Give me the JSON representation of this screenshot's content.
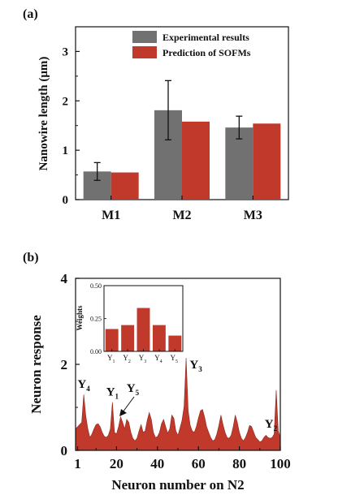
{
  "chart_data": [
    {
      "type": "bar",
      "panel_label": "(a)",
      "categories": [
        "M1",
        "M2",
        "M3"
      ],
      "series": [
        {
          "name": "Experimental results",
          "values": [
            0.57,
            1.81,
            1.46
          ],
          "errors": [
            0.18,
            0.6,
            0.23
          ],
          "color": "#717171"
        },
        {
          "name": "Prediction of SOFMs",
          "values": [
            0.55,
            1.58,
            1.54
          ],
          "color": "#c0392b"
        }
      ],
      "ylabel": "Nanowire length (μm)",
      "ylim": [
        0,
        3.5
      ],
      "yticks": [
        "0",
        "1",
        "2",
        "3"
      ],
      "legend": "top-right",
      "grid": false
    },
    {
      "type": "area",
      "panel_label": "(b)",
      "xlabel": "Neuron number on N2",
      "ylabel": "Neuron response",
      "xlim": [
        0,
        100
      ],
      "ylim": [
        0,
        4
      ],
      "xticks": [
        "1",
        "20",
        "40",
        "60",
        "80",
        "100"
      ],
      "yticks": [
        "0",
        "2",
        "4"
      ],
      "color": "#c0392b",
      "x": [
        0,
        1,
        2,
        3,
        4,
        5,
        6,
        7,
        8,
        9,
        10,
        11,
        12,
        13,
        14,
        15,
        16,
        17,
        18,
        19,
        20,
        21,
        22,
        23,
        24,
        25,
        26,
        27,
        28,
        29,
        30,
        31,
        32,
        33,
        34,
        35,
        36,
        37,
        38,
        39,
        40,
        41,
        42,
        43,
        44,
        45,
        46,
        47,
        48,
        49,
        50,
        51,
        52,
        53,
        54,
        55,
        56,
        57,
        58,
        59,
        60,
        61,
        62,
        63,
        64,
        65,
        66,
        67,
        68,
        69,
        70,
        71,
        72,
        73,
        74,
        75,
        76,
        77,
        78,
        79,
        80,
        81,
        82,
        83,
        84,
        85,
        86,
        87,
        88,
        89,
        90,
        91,
        92,
        93,
        94,
        95,
        96,
        97,
        98,
        99,
        100
      ],
      "y": [
        0.5,
        0.55,
        0.6,
        0.65,
        1.3,
        0.8,
        0.5,
        0.3,
        0.38,
        0.5,
        0.6,
        0.62,
        0.55,
        0.42,
        0.33,
        0.3,
        0.35,
        0.5,
        1.12,
        0.42,
        0.38,
        0.55,
        0.78,
        0.65,
        0.5,
        0.72,
        0.65,
        0.42,
        0.28,
        0.22,
        0.28,
        0.45,
        0.6,
        0.42,
        0.45,
        0.7,
        0.88,
        0.72,
        0.42,
        0.3,
        0.32,
        0.42,
        0.62,
        0.72,
        0.55,
        0.4,
        0.5,
        0.82,
        0.75,
        0.45,
        0.35,
        0.52,
        0.7,
        1.02,
        2.15,
        0.92,
        0.58,
        0.45,
        0.42,
        0.55,
        0.75,
        0.92,
        0.95,
        0.78,
        0.55,
        0.42,
        0.3,
        0.22,
        0.25,
        0.38,
        0.58,
        0.82,
        0.6,
        0.42,
        0.3,
        0.28,
        0.35,
        0.55,
        0.82,
        0.65,
        0.42,
        0.28,
        0.22,
        0.3,
        0.42,
        0.58,
        0.55,
        0.42,
        0.3,
        0.25,
        0.2,
        0.22,
        0.3,
        0.35,
        0.3,
        0.28,
        0.3,
        0.38,
        1.4,
        0.45,
        0.3
      ],
      "annotations": [
        {
          "text": "Y",
          "sub": "4",
          "x": 4
        },
        {
          "text": "Y",
          "sub": "1",
          "x": 18
        },
        {
          "text": "Y",
          "sub": "5",
          "x": 22
        },
        {
          "text": "Y",
          "sub": "3",
          "x": 54
        },
        {
          "text": "Y",
          "sub": "2",
          "x": 97
        }
      ],
      "inset": {
        "type": "bar",
        "categories": [
          {
            "text": "Y",
            "sub": "1"
          },
          {
            "text": "Y",
            "sub": "2"
          },
          {
            "text": "Y",
            "sub": "3"
          },
          {
            "text": "Y",
            "sub": "4"
          },
          {
            "text": "Y",
            "sub": "5"
          }
        ],
        "values": [
          0.17,
          0.2,
          0.33,
          0.2,
          0.12
        ],
        "ylabel": "Weights",
        "ylim": [
          0,
          0.5
        ],
        "yticks": [
          "0.00",
          "0.25",
          "0.50"
        ],
        "color": "#c0392b"
      }
    }
  ]
}
